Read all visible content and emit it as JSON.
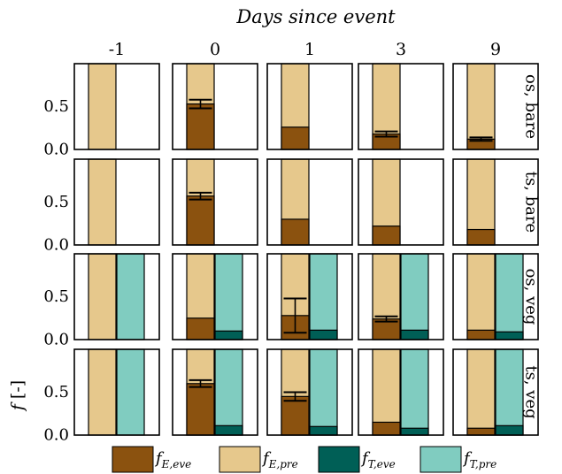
{
  "chart_data": {
    "type": "bar",
    "layout": "small-multiples grid, 4 rows x 5 columns",
    "title": "Days since event",
    "ylabel": "f [-]",
    "columns": [
      "-1",
      "0",
      "1",
      "3",
      "9"
    ],
    "rows": [
      "os, bare",
      "ts, bare",
      "os, veg",
      "ts, veg"
    ],
    "ylim": [
      0,
      1
    ],
    "yticks": [
      "0.0",
      "0.5"
    ],
    "bar_groups": [
      "E",
      "T"
    ],
    "legend_placement": "bottom",
    "legend": [
      {
        "key": "fE_eve",
        "base": "f",
        "sub": "E,eve",
        "color": "#8b520f"
      },
      {
        "key": "fE_pre",
        "base": "f",
        "sub": "E,pre",
        "color": "#e6c88c"
      },
      {
        "key": "fT_eve",
        "base": "f",
        "sub": "T,eve",
        "color": "#005f56"
      },
      {
        "key": "fT_pre",
        "base": "f",
        "sub": "T,pre",
        "color": "#80ccc0"
      }
    ],
    "panels": [
      [
        {
          "E": {
            "eve": 0.0,
            "err": null
          },
          "T": null
        },
        {
          "E": {
            "eve": 0.53,
            "err": 0.05
          },
          "T": null
        },
        {
          "E": {
            "eve": 0.26,
            "err": null
          },
          "T": null
        },
        {
          "E": {
            "eve": 0.18,
            "err": 0.03
          },
          "T": null
        },
        {
          "E": {
            "eve": 0.12,
            "err": 0.02
          },
          "T": null
        }
      ],
      [
        {
          "E": {
            "eve": 0.0,
            "err": null
          },
          "T": null
        },
        {
          "E": {
            "eve": 0.57,
            "err": 0.04
          },
          "T": null
        },
        {
          "E": {
            "eve": 0.3,
            "err": null
          },
          "T": null
        },
        {
          "E": {
            "eve": 0.22,
            "err": null
          },
          "T": null
        },
        {
          "E": {
            "eve": 0.18,
            "err": null
          },
          "T": null
        }
      ],
      [
        {
          "E": {
            "eve": 0.0,
            "err": null
          },
          "T": {
            "eve": 0.0,
            "err": null
          }
        },
        {
          "E": {
            "eve": 0.25,
            "err": null
          },
          "T": {
            "eve": 0.1,
            "err": null
          }
        },
        {
          "E": {
            "eve": 0.28,
            "err": 0.2
          },
          "T": {
            "eve": 0.11,
            "err": null
          }
        },
        {
          "E": {
            "eve": 0.24,
            "err": 0.03
          },
          "T": {
            "eve": 0.11,
            "err": null
          }
        },
        {
          "E": {
            "eve": 0.11,
            "err": null
          },
          "T": {
            "eve": 0.09,
            "err": null
          }
        }
      ],
      [
        {
          "E": {
            "eve": 0.0,
            "err": null
          },
          "T": {
            "eve": 0.0,
            "err": null
          }
        },
        {
          "E": {
            "eve": 0.6,
            "err": 0.04
          },
          "T": {
            "eve": 0.11,
            "err": null
          }
        },
        {
          "E": {
            "eve": 0.45,
            "err": 0.05
          },
          "T": {
            "eve": 0.1,
            "err": null
          }
        },
        {
          "E": {
            "eve": 0.15,
            "err": null
          },
          "T": {
            "eve": 0.08,
            "err": null
          }
        },
        {
          "E": {
            "eve": 0.08,
            "err": null
          },
          "T": {
            "eve": 0.11,
            "err": null
          }
        }
      ]
    ]
  }
}
